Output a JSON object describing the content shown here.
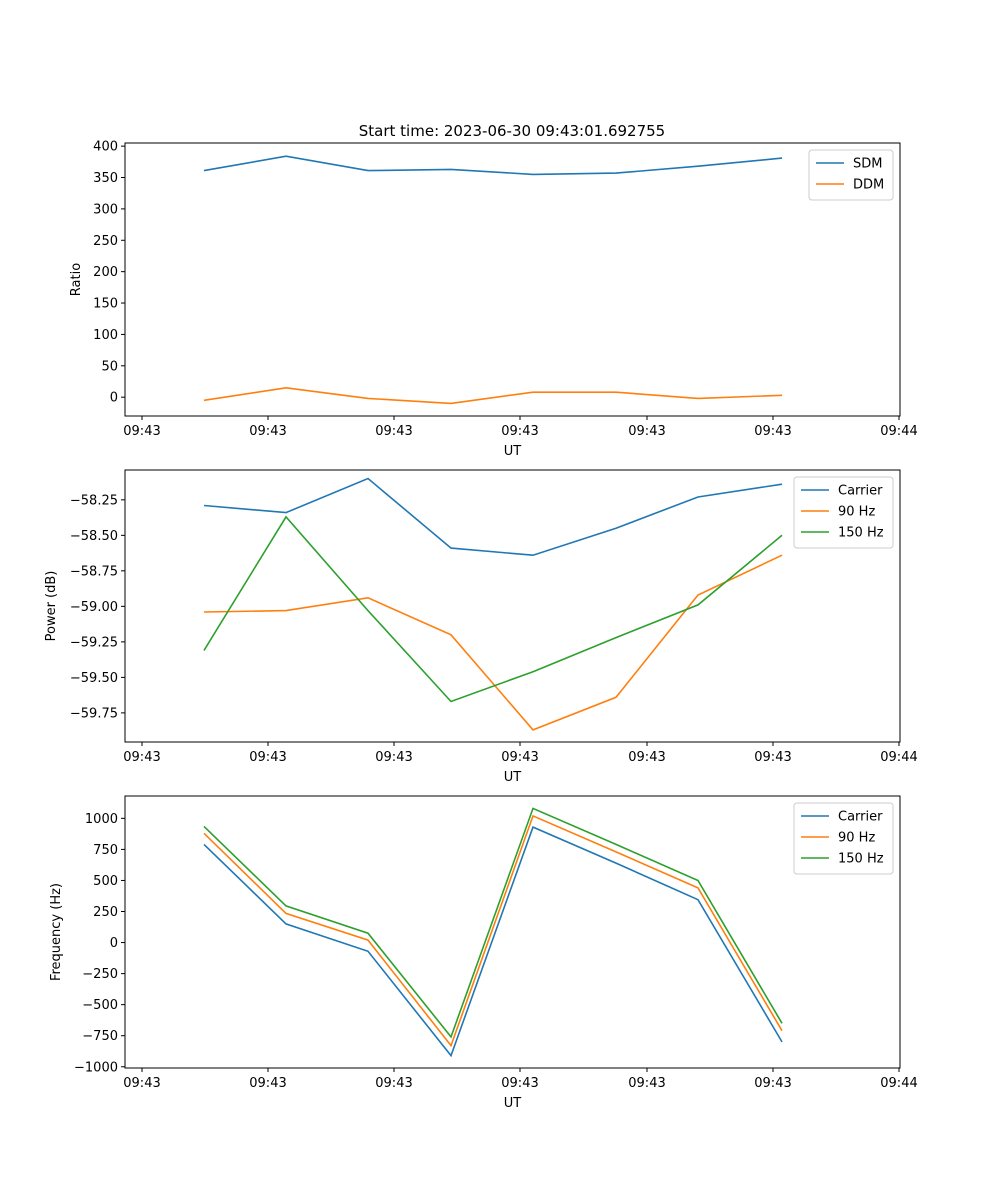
{
  "figure": {
    "title": "Start time: 2023-06-30 09:43:01.692755"
  },
  "chart_data": [
    {
      "type": "line",
      "title": "Start time: 2023-06-30 09:43:01.692755",
      "xlabel": "UT",
      "ylabel": "Ratio",
      "x_tick_labels": [
        "09:43",
        "09:43",
        "09:43",
        "09:43",
        "09:43",
        "09:43",
        "09:44"
      ],
      "y_ticks": [
        0,
        50,
        100,
        150,
        200,
        250,
        300,
        350,
        400
      ],
      "y_tick_labels": [
        "0",
        "50",
        "100",
        "150",
        "200",
        "250",
        "300",
        "350",
        "400"
      ],
      "ylim": [
        -30,
        405
      ],
      "legend": "top-right",
      "grid": false,
      "series": [
        {
          "name": "SDM",
          "color": "#1f77b4",
          "values": [
            361,
            384,
            361,
            363,
            355,
            357,
            368,
            381
          ]
        },
        {
          "name": "DDM",
          "color": "#ff7f0e",
          "values": [
            -5,
            15,
            -2,
            -10,
            8,
            8,
            -2,
            3
          ]
        }
      ]
    },
    {
      "type": "line",
      "title": "",
      "xlabel": "UT",
      "ylabel": "Power (dB)",
      "x_tick_labels": [
        "09:43",
        "09:43",
        "09:43",
        "09:43",
        "09:43",
        "09:43",
        "09:44"
      ],
      "y_ticks": [
        -59.75,
        -59.5,
        -59.25,
        -59.0,
        -58.75,
        -58.5,
        -58.25
      ],
      "y_tick_labels": [
        "−59.75",
        "−59.50",
        "−59.25",
        "−59.00",
        "−58.75",
        "−58.50",
        "−58.25"
      ],
      "ylim": [
        -59.955,
        -58.04
      ],
      "legend": "top-right",
      "grid": false,
      "series": [
        {
          "name": "Carrier",
          "color": "#1f77b4",
          "values": [
            -58.29,
            -58.34,
            -58.1,
            -58.59,
            -58.64,
            -58.45,
            -58.23,
            -58.14
          ]
        },
        {
          "name": "90 Hz",
          "color": "#ff7f0e",
          "values": [
            -59.04,
            -59.03,
            -58.94,
            -59.2,
            -59.87,
            -59.64,
            -58.92,
            -58.64
          ]
        },
        {
          "name": "150 Hz",
          "color": "#2ca02c",
          "values": [
            -59.31,
            -58.37,
            -59.03,
            -59.67,
            -59.46,
            -59.22,
            -58.99,
            -58.5
          ]
        }
      ]
    },
    {
      "type": "line",
      "title": "",
      "xlabel": "UT",
      "ylabel": "Frequency (Hz)",
      "x_tick_labels": [
        "09:43",
        "09:43",
        "09:43",
        "09:43",
        "09:43",
        "09:43",
        "09:44"
      ],
      "y_ticks": [
        -1000,
        -750,
        -500,
        -250,
        0,
        250,
        500,
        750,
        1000
      ],
      "y_tick_labels": [
        "−1000",
        "−750",
        "−500",
        "−250",
        "0",
        "250",
        "500",
        "750",
        "1000"
      ],
      "ylim": [
        -1010,
        1180
      ],
      "legend": "top-right",
      "grid": false,
      "series": [
        {
          "name": "Carrier",
          "color": "#1f77b4",
          "values": [
            790,
            150,
            -70,
            -910,
            930,
            640,
            345,
            -800
          ]
        },
        {
          "name": "90 Hz",
          "color": "#ff7f0e",
          "values": [
            880,
            235,
            20,
            -830,
            1020,
            730,
            440,
            -710
          ]
        },
        {
          "name": "150 Hz",
          "color": "#2ca02c",
          "values": [
            935,
            295,
            75,
            -760,
            1080,
            790,
            500,
            -650
          ]
        }
      ]
    }
  ]
}
